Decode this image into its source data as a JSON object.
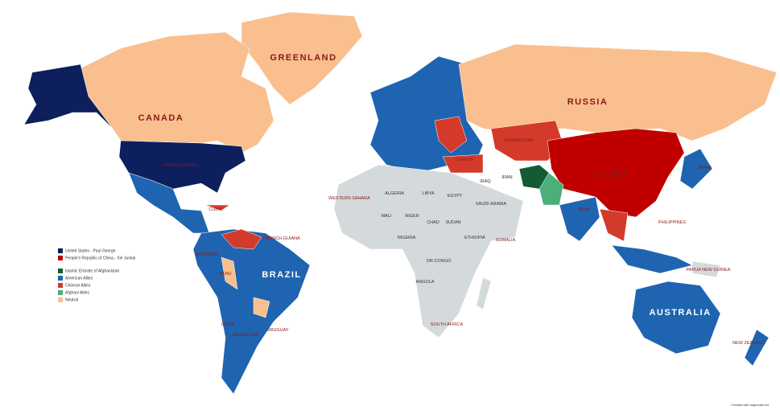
{
  "legend": {
    "items": [
      {
        "label": "United States - Paul George",
        "color": "#0d1f5c"
      },
      {
        "label": "People's Republic of China - Xie Junkai",
        "color": "#c00000"
      },
      {
        "label": "Islamic Emirate of Afghanistan",
        "color": "#145a32"
      },
      {
        "label": "American Allies",
        "color": "#1f64b0"
      },
      {
        "label": "Chinese Allies",
        "color": "#d43a2a"
      },
      {
        "label": "Afghani Allies",
        "color": "#4cae7a"
      },
      {
        "label": "Neutral",
        "color": "#f9bf8f"
      }
    ]
  },
  "labels": [
    "GREENLAND",
    "CANADA",
    "RUSSIA",
    "KAZAKHSTAN",
    "CHINA",
    "JAPAN",
    "IRAN",
    "IRAQ",
    "TURKIYE",
    "SAUDI ARABIA",
    "EGYPT",
    "LIBYA",
    "ALGERIA",
    "WESTERN SAHARA",
    "MALI",
    "NIGER",
    "CHAD",
    "SUDAN",
    "ETHIOPIA",
    "SOMALIA",
    "NIGERIA",
    "DR CONGO",
    "ANGOLA",
    "SOUTH AFRICA",
    "INDIA",
    "PHILIPPINES",
    "PAPUA NEW GUINEA",
    "AUSTRALIA",
    "NEW ZEALAND",
    "BRAZIL",
    "PERU",
    "CHILE",
    "ARGENTINA",
    "URUGUAY",
    "ECUADOR",
    "FRENCH GUIANA",
    "CUBA",
    "UNITED STATES"
  ],
  "footer": "Created with mapchart.net"
}
